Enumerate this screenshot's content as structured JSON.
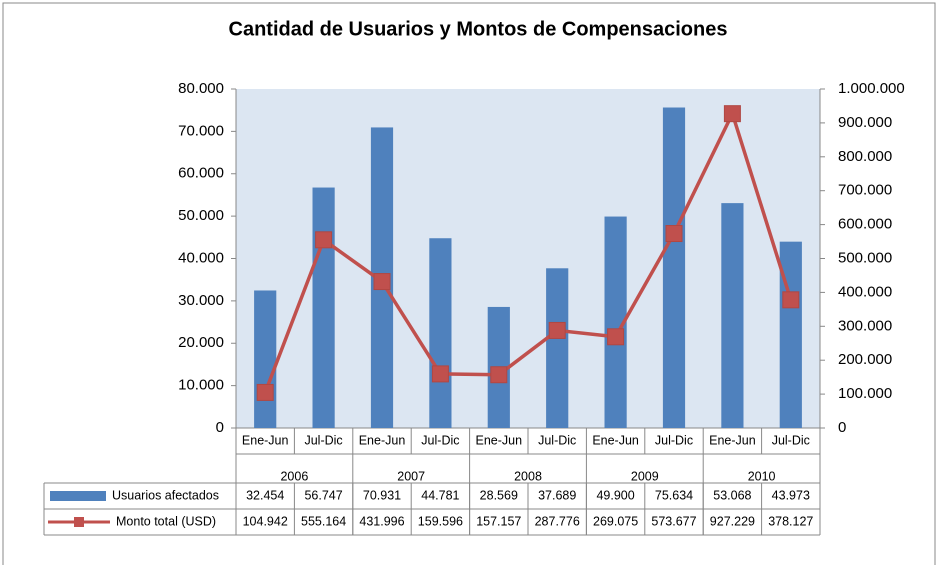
{
  "chart_data": {
    "type": "bar_line",
    "title": "Cantidad de Usuarios y Montos de Compensaciones",
    "categories": [
      "Ene-Jun",
      "Jul-Dic",
      "Ene-Jun",
      "Jul-Dic",
      "Ene-Jun",
      "Jul-Dic",
      "Ene-Jun",
      "Jul-Dic",
      "Ene-Jun",
      "Jul-Dic"
    ],
    "years": [
      "2006",
      "2007",
      "2008",
      "2009",
      "2010"
    ],
    "series": [
      {
        "name": "Usuarios afectados",
        "color": "#4f81bd",
        "type": "bar",
        "values": [
          32454,
          56747,
          70931,
          44781,
          28569,
          37689,
          49900,
          75634,
          53068,
          43973
        ],
        "value_labels": [
          "32.454",
          "56.747",
          "70.931",
          "44.781",
          "28.569",
          "37.689",
          "49.900",
          "75.634",
          "53.068",
          "43.973"
        ]
      },
      {
        "name": "Monto total (USD)",
        "color": "#c0504d",
        "type": "line",
        "axis": "y2",
        "values": [
          104942,
          555164,
          431996,
          159596,
          157157,
          287776,
          269075,
          573677,
          927229,
          378127
        ],
        "value_labels": [
          "104.942",
          "555.164",
          "431.996",
          "159.596",
          "157.157",
          "287.776",
          "269.075",
          "573.677",
          "927.229",
          "378.127"
        ]
      }
    ],
    "ylim": [
      0,
      80000
    ],
    "yticks": [
      0,
      {
        "value": 10000,
        "label": "10.000"
      },
      {
        "value": 20000,
        "label": "20.000"
      },
      {
        "value": 30000,
        "label": "30.000"
      },
      {
        "value": 40000,
        "label": "40.000"
      },
      {
        "value": 50000,
        "label": "50.000"
      },
      {
        "value": 60000,
        "label": "60.000"
      },
      {
        "value": 70000,
        "label": "70.000"
      },
      {
        "value": 80000,
        "label": "80.000"
      }
    ],
    "y2lim": [
      0,
      1000000
    ],
    "y2ticks": [
      0,
      {
        "value": 100000,
        "label": "100.000"
      },
      {
        "value": 200000,
        "label": "200.000"
      },
      {
        "value": 300000,
        "label": "300.000"
      },
      {
        "value": 400000,
        "label": "400.000"
      },
      {
        "value": 500000,
        "label": "500.000"
      },
      {
        "value": 600000,
        "label": "600.000"
      },
      {
        "value": 700000,
        "label": "700.000"
      },
      {
        "value": 800000,
        "label": "800.000"
      },
      {
        "value": 900000,
        "label": "900.000"
      },
      {
        "value": 1000000,
        "label": "1.000.000"
      }
    ]
  }
}
